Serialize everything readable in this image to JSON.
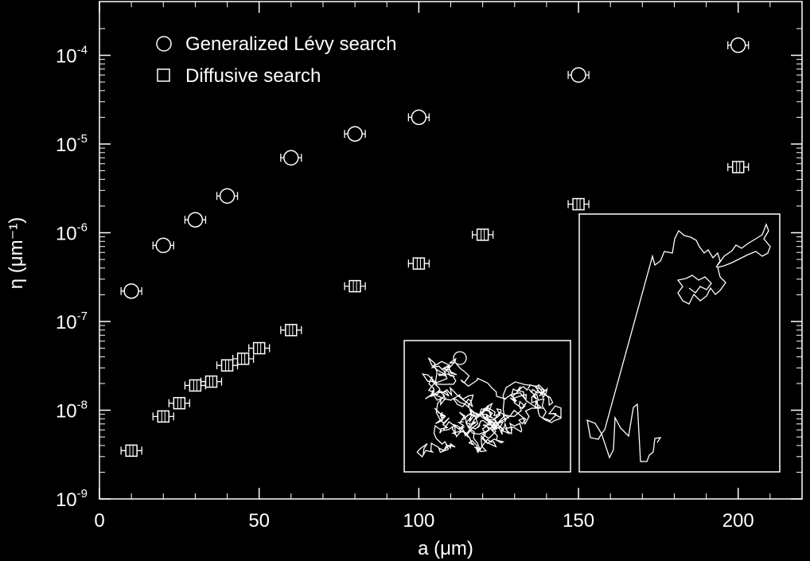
{
  "chart_data": {
    "type": "scatter",
    "title": "",
    "xlabel": "a (μm)",
    "ylabel": "η (μm⁻¹)",
    "xlim": [
      0,
      220
    ],
    "ylim": [
      1e-09,
      0.0003
    ],
    "yscale": "log",
    "x_ticks": [
      0,
      50,
      100,
      150,
      200
    ],
    "x_tick_labels": [
      "0",
      "50",
      "100",
      "150",
      "200"
    ],
    "y_ticks": [
      1e-09,
      1e-08,
      1e-07,
      1e-06,
      1e-05,
      0.0001
    ],
    "y_tick_labels": [
      {
        "base": "10",
        "exp": "-9"
      },
      {
        "base": "10",
        "exp": "-8"
      },
      {
        "base": "10",
        "exp": "-7"
      },
      {
        "base": "10",
        "exp": "-6"
      },
      {
        "base": "10",
        "exp": "-5"
      },
      {
        "base": "10",
        "exp": "-4"
      }
    ],
    "legend_position": "top-left",
    "series": [
      {
        "name": "Generalized Lévy search",
        "marker": "circle",
        "color": "#ffffff",
        "points": [
          {
            "x": 10,
            "y": 2.2e-07
          },
          {
            "x": 20,
            "y": 7.2e-07
          },
          {
            "x": 30,
            "y": 1.4e-06
          },
          {
            "x": 40,
            "y": 2.6e-06
          },
          {
            "x": 60,
            "y": 7e-06
          },
          {
            "x": 80,
            "y": 1.3e-05
          },
          {
            "x": 100,
            "y": 2e-05
          },
          {
            "x": 150,
            "y": 6e-05
          },
          {
            "x": 200,
            "y": 0.00013
          }
        ]
      },
      {
        "name": "Diffusive search",
        "marker": "square",
        "color": "#ffffff",
        "points": [
          {
            "x": 10,
            "y": 3.5e-09
          },
          {
            "x": 20,
            "y": 8.5e-09
          },
          {
            "x": 25,
            "y": 1.2e-08
          },
          {
            "x": 30,
            "y": 1.9e-08
          },
          {
            "x": 35,
            "y": 2.1e-08
          },
          {
            "x": 40,
            "y": 3.2e-08
          },
          {
            "x": 45,
            "y": 3.8e-08
          },
          {
            "x": 50,
            "y": 5e-08
          },
          {
            "x": 60,
            "y": 8e-08
          },
          {
            "x": 80,
            "y": 2.5e-07
          },
          {
            "x": 100,
            "y": 4.5e-07
          },
          {
            "x": 120,
            "y": 9.5e-07
          },
          {
            "x": 150,
            "y": 2.1e-06
          },
          {
            "x": 200,
            "y": 5.5e-06
          }
        ]
      }
    ],
    "insets": [
      {
        "name": "diffusive-trajectory-inset"
      },
      {
        "name": "levy-trajectory-inset"
      }
    ]
  }
}
